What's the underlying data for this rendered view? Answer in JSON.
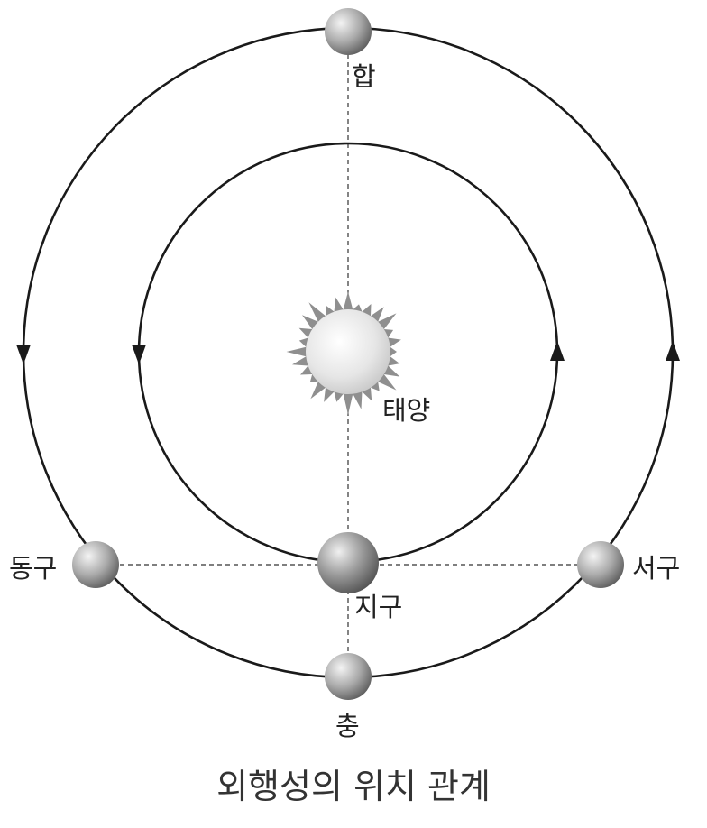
{
  "labels": {
    "conjunction": "합",
    "sun": "태양",
    "east_quadrature": "동구",
    "earth": "지구",
    "west_quadrature": "서구",
    "opposition": "충"
  },
  "caption": "외행성의 위치 관계",
  "colors": {
    "orbit": "#1a1a1a",
    "planet_light": "#f4f4f4",
    "planet_dark": "#5a5a5a",
    "sun_rays": "#8f8f8f",
    "sun_core_light": "#ffffff",
    "sun_core_dark": "#c9c9c9"
  }
}
